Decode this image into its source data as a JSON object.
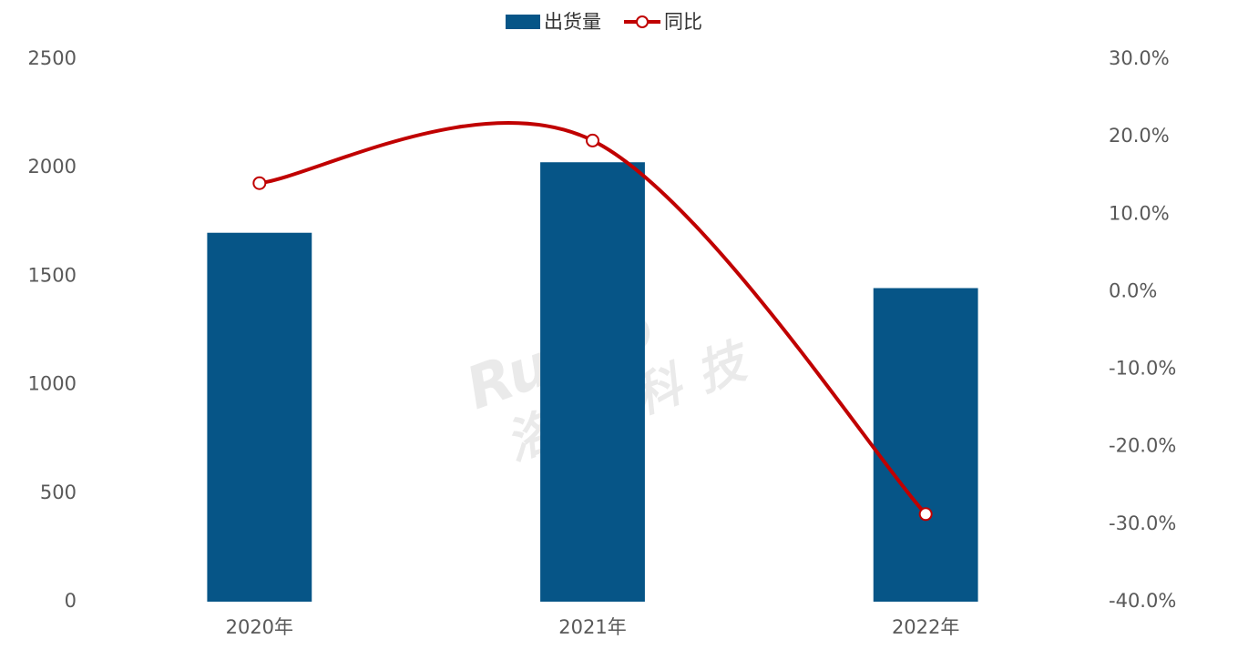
{
  "chart_data": {
    "type": "bar-line",
    "categories": [
      "2020年",
      "2021年",
      "2022年"
    ],
    "series": [
      {
        "name": "出货量",
        "type": "bar",
        "color": "#065587",
        "values": [
          1700,
          2025,
          1445
        ]
      },
      {
        "name": "同比",
        "type": "line",
        "color": "#c00000",
        "axis": "y2",
        "smooth": true,
        "values": [
          14.0,
          19.5,
          -28.7
        ]
      }
    ],
    "ylim": [
      0,
      2500
    ],
    "yticks": [
      0,
      500,
      1000,
      1500,
      2000,
      2500
    ],
    "y2lim": [
      -40,
      30
    ],
    "y2ticks": [
      {
        "value": -40,
        "label": "-40.0%"
      },
      {
        "value": -30,
        "label": "-30.0%"
      },
      {
        "value": -20,
        "label": "-20.0%"
      },
      {
        "value": -10,
        "label": "-10.0%"
      },
      {
        "value": 0,
        "label": "0.0%"
      },
      {
        "value": 10,
        "label": "10.0%"
      },
      {
        "value": 20,
        "label": "20.0%"
      },
      {
        "value": 30,
        "label": "30.0%"
      }
    ],
    "legend": "top",
    "grid": false,
    "watermark": [
      "Runto",
      "洛图科技"
    ]
  }
}
